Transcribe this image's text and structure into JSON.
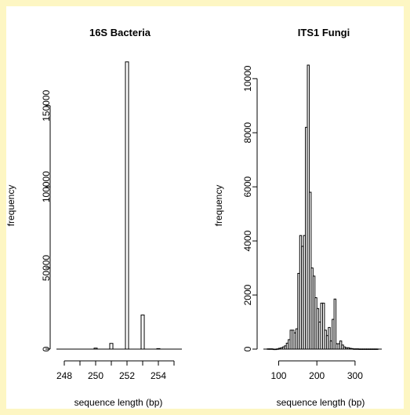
{
  "chart_data": [
    {
      "type": "bar",
      "title": "16S Bacteria",
      "xlabel": "sequence length (bp)",
      "ylabel": "frequency",
      "xlim": [
        247.5,
        255.5
      ],
      "ylim": [
        0,
        175000
      ],
      "x_ticks": [
        "248",
        "250",
        "252",
        "254"
      ],
      "x_minor_ticks": [
        249,
        251,
        253,
        255
      ],
      "y_ticks": [
        "0",
        "50000",
        "100000",
        "150000"
      ],
      "bin_width": 0.2,
      "bins": [
        {
          "x": 250.0,
          "count": 600
        },
        {
          "x": 251.0,
          "count": 3500
        },
        {
          "x": 252.0,
          "count": 177000
        },
        {
          "x": 253.0,
          "count": 21000
        },
        {
          "x": 254.0,
          "count": 300
        }
      ]
    },
    {
      "type": "bar",
      "title": "ITS1 Fungi",
      "xlabel": "sequence length (bp)",
      "ylabel": "frequency",
      "xlim": [
        60,
        370
      ],
      "ylim": [
        0,
        10500
      ],
      "x_ticks": [
        "100",
        "200",
        "300"
      ],
      "y_ticks": [
        "0",
        "2000",
        "4000",
        "6000",
        "8000",
        "10000"
      ],
      "bin_width": 5,
      "bin_start": 70,
      "counts": [
        10,
        10,
        10,
        0,
        0,
        10,
        30,
        50,
        80,
        120,
        220,
        350,
        700,
        700,
        600,
        750,
        2800,
        4200,
        3800,
        4200,
        8200,
        10500,
        5800,
        3000,
        2700,
        1900,
        1500,
        1000,
        1700,
        1700,
        700,
        500,
        800,
        300,
        1100,
        1850,
        200,
        200,
        300,
        150,
        80,
        50,
        50,
        30,
        20,
        10,
        10,
        10,
        5,
        5,
        5,
        5,
        5,
        5,
        5,
        5,
        5,
        5
      ]
    }
  ]
}
